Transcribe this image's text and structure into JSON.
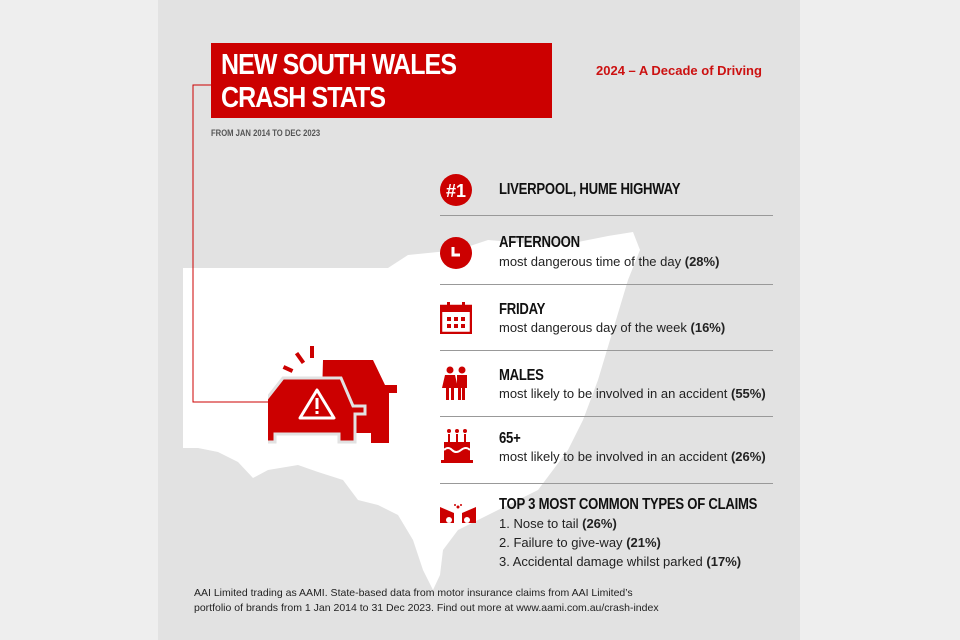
{
  "header": {
    "title_line1": "NEW SOUTH WALES",
    "title_line2": "CRASH STATS",
    "subtitle": "FROM JAN 2014 TO DEC 2023",
    "tagline": "2024 – A Decade of Driving"
  },
  "colors": {
    "accent": "#cc0000",
    "panel": "#e2e2e2",
    "map": "#ffffff"
  },
  "stats": [
    {
      "icon": "number-one-icon",
      "title": "LIVERPOOL, HUME HIGHWAY"
    },
    {
      "icon": "clock-icon",
      "title": "AFTERNOON",
      "desc": "most dangerous time of the day",
      "value": "(28%)"
    },
    {
      "icon": "calendar-icon",
      "title": "FRIDAY",
      "desc": "most dangerous day of the week",
      "value": "(16%)"
    },
    {
      "icon": "male-female-icon",
      "title": "MALES",
      "desc": "most likely to be involved in an accident",
      "value": "(55%)"
    },
    {
      "icon": "birthday-cake-icon",
      "title": "65+",
      "desc": "most likely to be involved in an accident ",
      "value": "(26%)"
    }
  ],
  "claims": {
    "icon": "car-collision-icon",
    "title": "TOP 3 MOST COMMON TYPES OF CLAIMS",
    "items": [
      {
        "label": "1. Nose to tail",
        "value": "(26%)"
      },
      {
        "label": "2. Failure to give-way",
        "value": "(21%)"
      },
      {
        "label": "3. Accidental damage whilst parked",
        "value": "(17%)"
      }
    ]
  },
  "footer": {
    "line1": "AAI Limited trading as AAMI. State-based data from motor insurance claims from AAI Limited’s",
    "line2": "portfolio of brands from 1 Jan 2014 to 31 Dec 2023.  Find out more at www.aami.com.au/crash-index"
  }
}
